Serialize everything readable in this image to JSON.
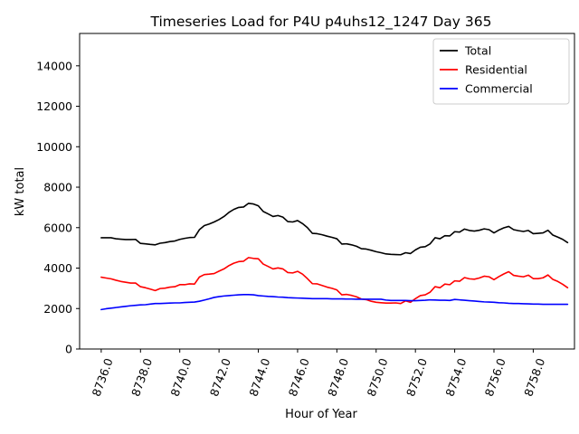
{
  "chart_data": {
    "type": "line",
    "title": "Timeseries Load for P4U p4uhs12_1247  Day 365",
    "xlabel": "Hour of Year",
    "ylabel": "kW total",
    "xlim": [
      8734.9,
      8760.1
    ],
    "ylim": [
      0,
      15600
    ],
    "x_ticks": [
      8736,
      8738,
      8740,
      8742,
      8744,
      8746,
      8748,
      8750,
      8752,
      8754,
      8756,
      8758
    ],
    "x_tick_labels": [
      "8736.0",
      "8738.0",
      "8740.0",
      "8742.0",
      "8744.0",
      "8746.0",
      "8748.0",
      "8750.0",
      "8752.0",
      "8754.0",
      "8756.0",
      "8758.0"
    ],
    "y_ticks": [
      0,
      2000,
      4000,
      6000,
      8000,
      10000,
      12000,
      14000
    ],
    "y_tick_labels": [
      "0",
      "2000",
      "4000",
      "6000",
      "8000",
      "10000",
      "12000",
      "14000"
    ],
    "legend_position": "top-right",
    "grid": false,
    "x": [
      8736.0,
      8736.25,
      8736.5,
      8736.75,
      8737.0,
      8737.25,
      8737.5,
      8737.75,
      8738.0,
      8738.25,
      8738.5,
      8738.75,
      8739.0,
      8739.25,
      8739.5,
      8739.75,
      8740.0,
      8740.25,
      8740.5,
      8740.75,
      8741.0,
      8741.25,
      8741.5,
      8741.75,
      8742.0,
      8742.25,
      8742.5,
      8742.75,
      8743.0,
      8743.25,
      8743.5,
      8743.75,
      8744.0,
      8744.25,
      8744.5,
      8744.75,
      8745.0,
      8745.25,
      8745.5,
      8745.75,
      8746.0,
      8746.25,
      8746.5,
      8746.75,
      8747.0,
      8747.25,
      8747.5,
      8747.75,
      8748.0,
      8748.25,
      8748.5,
      8748.75,
      8749.0,
      8749.25,
      8749.5,
      8749.75,
      8750.0,
      8750.25,
      8750.5,
      8750.75,
      8751.0,
      8751.25,
      8751.5,
      8751.75,
      8752.0,
      8752.25,
      8752.5,
      8752.75,
      8753.0,
      8753.25,
      8753.5,
      8753.75,
      8754.0,
      8754.25,
      8754.5,
      8754.75,
      8755.0,
      8755.25,
      8755.5,
      8755.75,
      8756.0,
      8756.25,
      8756.5,
      8756.75,
      8757.0,
      8757.25,
      8757.5,
      8757.75,
      8758.0,
      8758.25,
      8758.5,
      8758.75,
      8759.0,
      8759.25,
      8759.5,
      8759.75
    ],
    "series": [
      {
        "name": "Total",
        "color": "#000000",
        "values": [
          5500,
          5500,
          5500,
          5450,
          5430,
          5410,
          5410,
          5420,
          5220,
          5200,
          5170,
          5150,
          5230,
          5260,
          5310,
          5340,
          5420,
          5470,
          5510,
          5520,
          5900,
          6100,
          6180,
          6280,
          6400,
          6550,
          6750,
          6900,
          7000,
          7020,
          7200,
          7170,
          7080,
          6800,
          6680,
          6550,
          6600,
          6520,
          6300,
          6280,
          6350,
          6200,
          6000,
          5720,
          5700,
          5650,
          5580,
          5520,
          5450,
          5190,
          5200,
          5150,
          5080,
          4960,
          4940,
          4880,
          4810,
          4760,
          4700,
          4680,
          4670,
          4660,
          4760,
          4720,
          4900,
          5030,
          5060,
          5200,
          5500,
          5450,
          5600,
          5590,
          5800,
          5780,
          5930,
          5860,
          5830,
          5870,
          5940,
          5900,
          5740,
          5880,
          5990,
          6060,
          5900,
          5850,
          5810,
          5860,
          5700,
          5720,
          5740,
          5870,
          5630,
          5530,
          5420,
          5260
        ]
      },
      {
        "name": "Residential",
        "color": "#ff0000",
        "values": [
          3550,
          3510,
          3470,
          3400,
          3340,
          3300,
          3260,
          3260,
          3080,
          3030,
          2960,
          2890,
          2990,
          3010,
          3060,
          3080,
          3180,
          3180,
          3220,
          3210,
          3560,
          3680,
          3700,
          3730,
          3850,
          3960,
          4120,
          4240,
          4320,
          4340,
          4520,
          4480,
          4460,
          4200,
          4080,
          3960,
          4010,
          3960,
          3780,
          3760,
          3840,
          3700,
          3480,
          3230,
          3220,
          3140,
          3060,
          3000,
          2920,
          2680,
          2700,
          2650,
          2580,
          2470,
          2440,
          2360,
          2310,
          2290,
          2270,
          2270,
          2280,
          2250,
          2380,
          2310,
          2490,
          2640,
          2680,
          2810,
          3080,
          3030,
          3210,
          3180,
          3370,
          3350,
          3530,
          3470,
          3450,
          3510,
          3600,
          3570,
          3430,
          3580,
          3710,
          3820,
          3640,
          3600,
          3570,
          3650,
          3480,
          3480,
          3520,
          3660,
          3440,
          3340,
          3200,
          3030
        ]
      },
      {
        "name": "Commercial",
        "color": "#0000ff",
        "values": [
          1950,
          1990,
          2020,
          2050,
          2080,
          2110,
          2140,
          2160,
          2180,
          2190,
          2220,
          2250,
          2250,
          2260,
          2270,
          2280,
          2280,
          2300,
          2310,
          2320,
          2360,
          2420,
          2480,
          2550,
          2590,
          2620,
          2640,
          2660,
          2680,
          2690,
          2690,
          2680,
          2640,
          2620,
          2600,
          2590,
          2570,
          2560,
          2540,
          2530,
          2520,
          2510,
          2500,
          2490,
          2490,
          2490,
          2490,
          2480,
          2480,
          2480,
          2470,
          2470,
          2460,
          2460,
          2460,
          2460,
          2460,
          2460,
          2420,
          2400,
          2400,
          2400,
          2400,
          2390,
          2390,
          2400,
          2410,
          2430,
          2420,
          2410,
          2410,
          2400,
          2450,
          2430,
          2410,
          2390,
          2370,
          2350,
          2330,
          2320,
          2310,
          2290,
          2280,
          2260,
          2250,
          2250,
          2240,
          2230,
          2220,
          2220,
          2210,
          2210,
          2210,
          2210,
          2210,
          2210
        ]
      }
    ]
  }
}
